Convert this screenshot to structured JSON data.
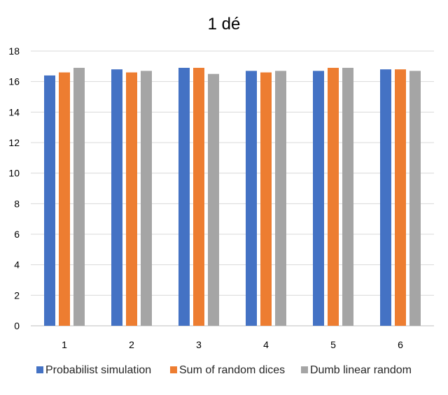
{
  "chart_data": {
    "type": "bar",
    "title": "1 dé",
    "xlabel": "",
    "ylabel": "",
    "categories": [
      "1",
      "2",
      "3",
      "4",
      "5",
      "6"
    ],
    "ylim": [
      0,
      18
    ],
    "yticks": [
      "0",
      "2",
      "4",
      "6",
      "8",
      "10",
      "12",
      "14",
      "16",
      "18"
    ],
    "grid": true,
    "legend_position": "bottom",
    "series": [
      {
        "name": "Probabilist simulation",
        "color": "#4472c4",
        "values": [
          16.4,
          16.8,
          16.9,
          16.7,
          16.7,
          16.8
        ]
      },
      {
        "name": "Sum of random dices",
        "color": "#ed7d31",
        "values": [
          16.6,
          16.6,
          16.9,
          16.6,
          16.9,
          16.8
        ]
      },
      {
        "name": "Dumb linear random",
        "color": "#a5a5a5",
        "values": [
          16.9,
          16.7,
          16.5,
          16.7,
          16.9,
          16.7
        ]
      }
    ]
  }
}
